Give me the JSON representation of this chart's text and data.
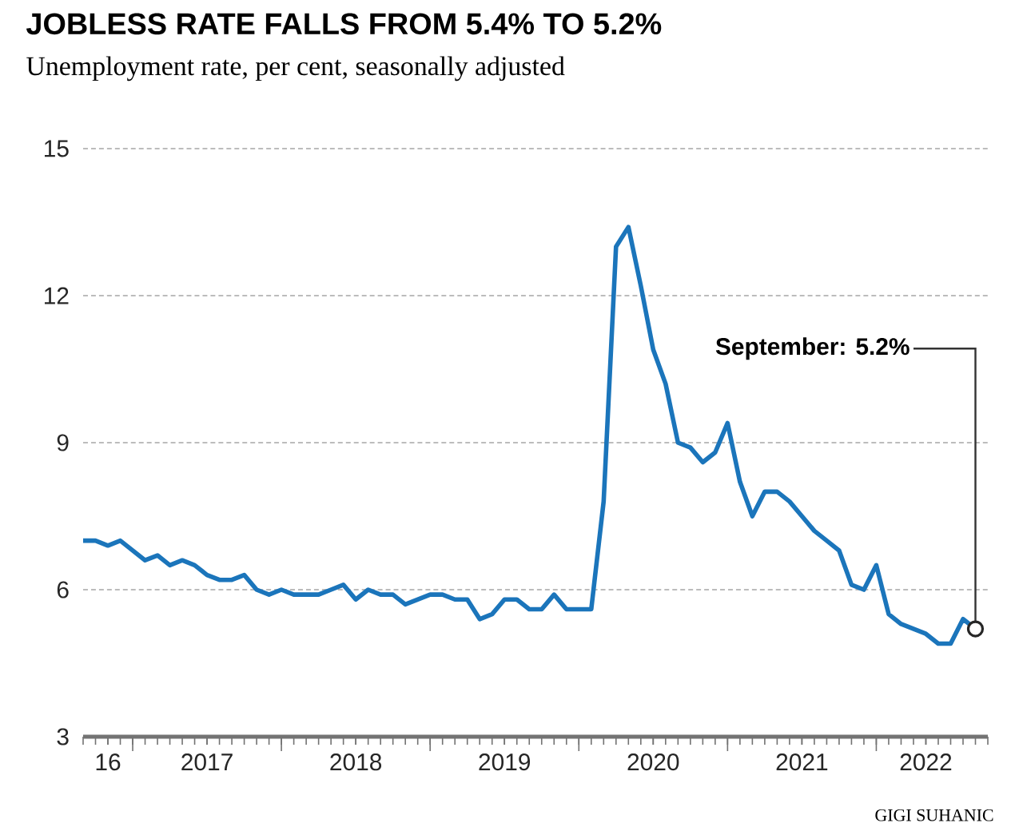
{
  "chart_data": {
    "type": "line",
    "title": "JOBLESS RATE FALLS FROM 5.4% TO 5.2%",
    "subtitle": "Unemployment rate, per cent, seasonally adjusted",
    "x": [
      "2016-09",
      "2016-10",
      "2016-11",
      "2016-12",
      "2017-01",
      "2017-02",
      "2017-03",
      "2017-04",
      "2017-05",
      "2017-06",
      "2017-07",
      "2017-08",
      "2017-09",
      "2017-10",
      "2017-11",
      "2017-12",
      "2018-01",
      "2018-02",
      "2018-03",
      "2018-04",
      "2018-05",
      "2018-06",
      "2018-07",
      "2018-08",
      "2018-09",
      "2018-10",
      "2018-11",
      "2018-12",
      "2019-01",
      "2019-02",
      "2019-03",
      "2019-04",
      "2019-05",
      "2019-06",
      "2019-07",
      "2019-08",
      "2019-09",
      "2019-10",
      "2019-11",
      "2019-12",
      "2020-01",
      "2020-02",
      "2020-03",
      "2020-04",
      "2020-05",
      "2020-06",
      "2020-07",
      "2020-08",
      "2020-09",
      "2020-10",
      "2020-11",
      "2020-12",
      "2021-01",
      "2021-02",
      "2021-03",
      "2021-04",
      "2021-05",
      "2021-06",
      "2021-07",
      "2021-08",
      "2021-09",
      "2021-10",
      "2021-11",
      "2021-12",
      "2022-01",
      "2022-02",
      "2022-03",
      "2022-04",
      "2022-05",
      "2022-06",
      "2022-07",
      "2022-08",
      "2022-09"
    ],
    "series": [
      {
        "color": "#1b75bb",
        "values": [
          7.0,
          7.0,
          6.9,
          7.0,
          6.8,
          6.6,
          6.7,
          6.5,
          6.6,
          6.5,
          6.3,
          6.2,
          6.2,
          6.3,
          6.0,
          5.9,
          6.0,
          5.9,
          5.9,
          5.9,
          6.0,
          6.1,
          5.8,
          6.0,
          5.9,
          5.9,
          5.7,
          5.8,
          5.9,
          5.9,
          5.8,
          5.8,
          5.4,
          5.5,
          5.8,
          5.8,
          5.6,
          5.6,
          5.9,
          5.6,
          5.6,
          5.6,
          7.8,
          13.0,
          13.4,
          12.2,
          10.9,
          10.2,
          9.0,
          8.9,
          8.6,
          8.8,
          9.4,
          8.2,
          7.5,
          8.0,
          8.0,
          7.8,
          7.5,
          7.2,
          7.0,
          6.8,
          6.1,
          6.0,
          6.5,
          5.5,
          5.3,
          5.2,
          5.1,
          4.9,
          4.9,
          5.4,
          5.2
        ]
      }
    ],
    "xlim": [
      "2016-09",
      "2022-10"
    ],
    "xticks": [
      {
        "value": "2016-11",
        "label": "16"
      },
      {
        "value": "2017-01",
        "label": null
      },
      {
        "value": "2017-07",
        "label": "2017"
      },
      {
        "value": "2018-01",
        "label": null
      },
      {
        "value": "2018-07",
        "label": "2018"
      },
      {
        "value": "2019-01",
        "label": null
      },
      {
        "value": "2019-07",
        "label": "2019"
      },
      {
        "value": "2020-01",
        "label": null
      },
      {
        "value": "2020-07",
        "label": "2020"
      },
      {
        "value": "2021-01",
        "label": null
      },
      {
        "value": "2021-07",
        "label": "2021"
      },
      {
        "value": "2022-01",
        "label": null
      },
      {
        "value": "2022-05",
        "label": "2022"
      }
    ],
    "ylim": [
      3,
      15
    ],
    "yticks": [
      3,
      6,
      9,
      12,
      15
    ],
    "grid": "y",
    "marker": "none",
    "line_style": "solid",
    "annotations": [
      {
        "text": "September: 5.2%",
        "x": "2022-09",
        "y": 5.2
      },
      "GIGI SUHANIC"
    ]
  }
}
